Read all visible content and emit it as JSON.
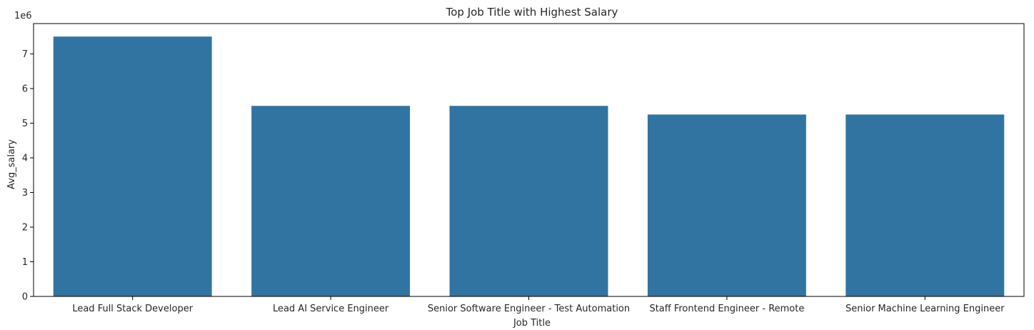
{
  "chart_data": {
    "type": "bar",
    "title": "Top Job Title with Highest Salary",
    "xlabel": "Job Title",
    "ylabel": "Avg_salary",
    "y_offset_label": "1e6",
    "categories": [
      "Lead Full Stack Developer",
      "Lead AI Service Engineer",
      "Senior Software Engineer - Test Automation",
      "Staff Frontend Engineer - Remote",
      "Senior Machine Learning Engineer"
    ],
    "values": [
      7500000,
      5500000,
      5500000,
      5250000,
      5250000
    ],
    "ylim": [
      0,
      7875000
    ],
    "yticks": [
      0,
      1,
      2,
      3,
      4,
      5,
      6,
      7
    ],
    "y_tick_scale": 1000000,
    "grid": false,
    "colors": {
      "bar": "#3274a1",
      "axis": "#000000",
      "text": "#262626",
      "background": "#ffffff"
    }
  }
}
